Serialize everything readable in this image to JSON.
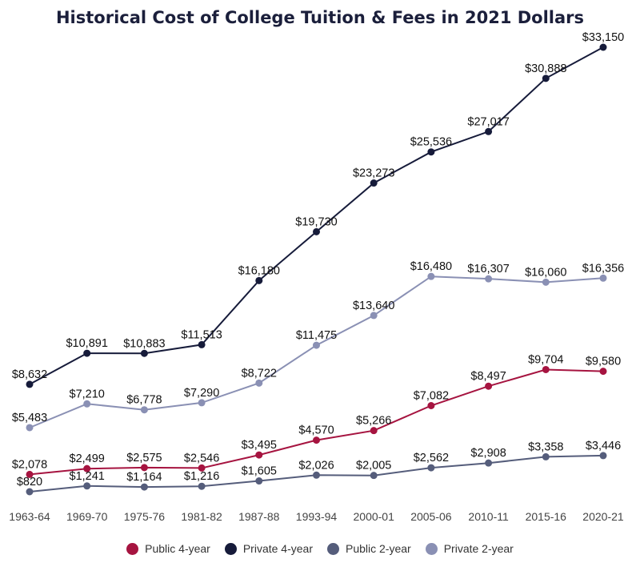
{
  "chart_data": {
    "type": "line",
    "title": "Historical Cost of College Tuition & Fees in 2021 Dollars",
    "xlabel": "",
    "ylabel": "",
    "grid": false,
    "legend_position": "bottom",
    "categories": [
      "1963-64",
      "1969-70",
      "1975-76",
      "1981-82",
      "1987-88",
      "1993-94",
      "2000-01",
      "2005-06",
      "2010-11",
      "2015-16",
      "2020-21"
    ],
    "series": [
      {
        "name": "Public 4-year",
        "color": "#a61440",
        "values": [
          2078,
          2499,
          2575,
          2546,
          3495,
          4570,
          5266,
          7082,
          8497,
          9704,
          9580
        ],
        "labels": [
          "$2,078",
          "$2,499",
          "$2,575",
          "$2,546",
          "$3,495",
          "$4,570",
          "$5,266",
          "$7,082",
          "$8,497",
          "$9,704",
          "$9,580"
        ]
      },
      {
        "name": "Private 4-year",
        "color": "#161b3a",
        "values": [
          8632,
          10891,
          10883,
          11513,
          16180,
          19730,
          23273,
          25536,
          27017,
          30888,
          33150
        ],
        "labels": [
          "$8,632",
          "$10,891",
          "$10,883",
          "$11,513",
          "$16,180",
          "$19,730",
          "$23,273",
          "$25,536",
          "$27,017",
          "$30,888",
          "$33,150"
        ]
      },
      {
        "name": "Public 2-year",
        "color": "#555d7b",
        "values": [
          820,
          1241,
          1164,
          1216,
          1605,
          2026,
          2005,
          2562,
          2908,
          3358,
          3446
        ],
        "labels": [
          "$820",
          "$1,241",
          "$1,164",
          "$1,216",
          "$1,605",
          "$2,026",
          "$2,005",
          "$2,562",
          "$2,908",
          "$3,358",
          "$3,446"
        ]
      },
      {
        "name": "Private 2-year",
        "color": "#8a90b4",
        "values": [
          5483,
          7210,
          6778,
          7290,
          8722,
          11475,
          13640,
          16480,
          16307,
          16060,
          16356
        ],
        "labels": [
          "$5,483",
          "$7,210",
          "$6,778",
          "$7,290",
          "$8,722",
          "$11,475",
          "$13,640",
          "$16,480",
          "$16,307",
          "$16,060",
          "$16,356"
        ]
      }
    ],
    "ylim": [
      0,
      34500
    ]
  }
}
